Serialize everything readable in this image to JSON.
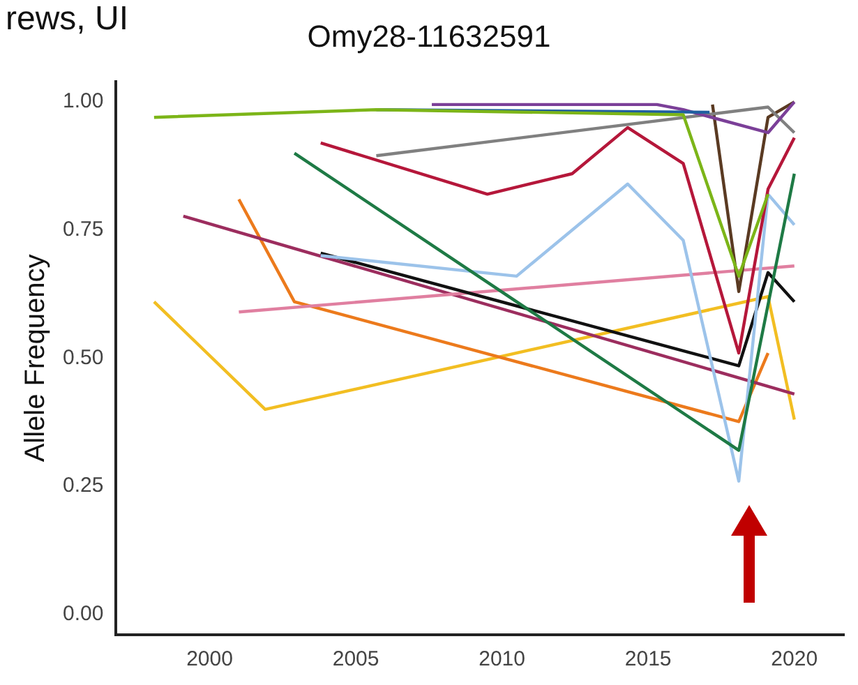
{
  "chart_data": {
    "type": "line",
    "title": "Omy28-11632591",
    "ylabel": "Allele Frequency",
    "annotations": [
      "rews, UI"
    ],
    "xlim": [
      1996.8,
      2021.7
    ],
    "xticks": [
      2000,
      2005,
      2010,
      2015,
      2020
    ],
    "ylim": [
      -0.04,
      1.04
    ],
    "yticks": [
      {
        "value": 0,
        "label": "0.00"
      },
      {
        "value": 0.25,
        "label": "0.25"
      },
      {
        "value": 0.5,
        "label": "0.50"
      },
      {
        "value": 0.75,
        "label": "0.75"
      },
      {
        "value": 1,
        "label": "1.00"
      }
    ],
    "grid": false,
    "legend": false,
    "marker": "none",
    "line_style": "solid",
    "series": [
      {
        "color": "#7cb518",
        "x": [
          1998.1,
          2005.7,
          2016.2,
          2018.1,
          2019.1
        ],
        "values": [
          0.97,
          0.985,
          0.975,
          0.66,
          0.82
        ]
      },
      {
        "color": "#1f5fa0",
        "x": [
          2005.7,
          2017.1
        ],
        "values": [
          0.985,
          0.98
        ]
      },
      {
        "color": "#7b3f98",
        "x": [
          2007.6,
          2015.3,
          2016.2,
          2019.1,
          2020
        ],
        "values": [
          0.995,
          0.995,
          0.985,
          0.94,
          1.0
        ]
      },
      {
        "color": "#808080",
        "x": [
          2005.7,
          2019.1,
          2020
        ],
        "values": [
          0.895,
          0.99,
          0.94
        ]
      },
      {
        "color": "#5a3a22",
        "x": [
          2017.2,
          2018.1,
          2019.1,
          2020
        ],
        "values": [
          0.995,
          0.63,
          0.97,
          1.0
        ]
      },
      {
        "color": "#b5173a",
        "x": [
          2003.8,
          2009.5,
          2012.4,
          2014.3,
          2016.2,
          2018.1,
          2019.1,
          2020
        ],
        "values": [
          0.92,
          0.82,
          0.86,
          0.95,
          0.88,
          0.51,
          0.83,
          0.93
        ]
      },
      {
        "color": "#1e7a45",
        "x": [
          2002.9,
          2018.1,
          2020
        ],
        "values": [
          0.9,
          0.32,
          0.86
        ]
      },
      {
        "color": "#9cc3ea",
        "x": [
          2003.8,
          2010.5,
          2014.3,
          2016.2,
          2018.1,
          2019.1,
          2020
        ],
        "values": [
          0.7,
          0.66,
          0.84,
          0.73,
          0.26,
          0.82,
          0.76
        ]
      },
      {
        "color": "#111111",
        "x": [
          2003.8,
          2018.1,
          2019.1,
          2020
        ],
        "values": [
          0.705,
          0.485,
          0.667,
          0.61
        ]
      },
      {
        "color": "#e07fa0",
        "x": [
          2001,
          2020
        ],
        "values": [
          0.59,
          0.68
        ]
      },
      {
        "color": "#9c2d5e",
        "x": [
          1999.1,
          2020
        ],
        "values": [
          0.777,
          0.43
        ]
      },
      {
        "color": "#ec7a1c",
        "x": [
          2001,
          2002.9,
          2018.1,
          2019.1
        ],
        "values": [
          0.81,
          0.61,
          0.376,
          0.51
        ]
      },
      {
        "color": "#f2be22",
        "x": [
          1998.1,
          2001.9,
          2019.1,
          2020
        ],
        "values": [
          0.61,
          0.4,
          0.62,
          0.38
        ]
      }
    ]
  }
}
